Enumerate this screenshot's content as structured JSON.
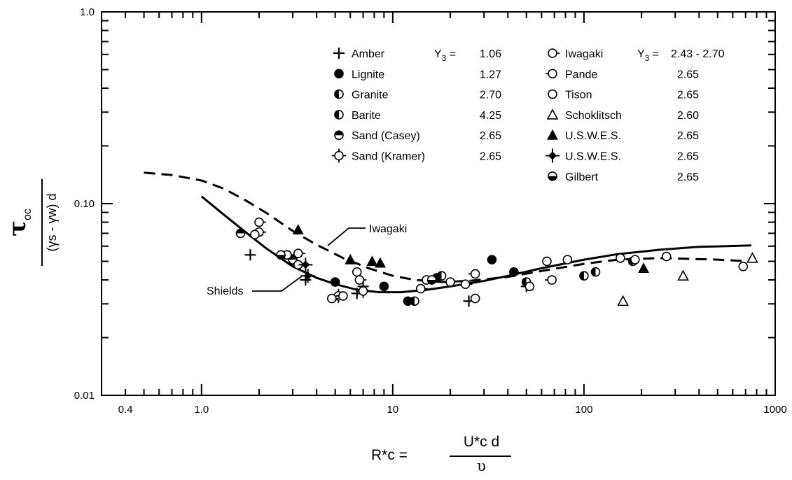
{
  "chart_data": {
    "type": "scatter",
    "x_scale": "log",
    "y_scale": "log",
    "xlim": [
      0.3,
      1000
    ],
    "ylim": [
      0.01,
      1.0
    ],
    "x_ticks": [
      "0.4",
      "1.0",
      "10",
      "100",
      "1000"
    ],
    "y_ticks": [
      "0.01",
      "0.10",
      "1.0"
    ],
    "ylabel": {
      "numerator": "τ",
      "numerator_sub": "oc",
      "denominator": "(γs - γw) d"
    },
    "xlabel": {
      "lhs": "R*c =",
      "numerator": "U*c d",
      "denominator": "υ"
    },
    "grid": false,
    "legend_position": "top",
    "gamma_header_left": "Y3 = ",
    "gamma_header_right": "Y3 = ",
    "legend_left": [
      {
        "name": "Amber",
        "marker": "plus",
        "gamma": "1.06"
      },
      {
        "name": "Lignite",
        "marker": "filled-circle",
        "gamma": "1.27"
      },
      {
        "name": "Granite",
        "marker": "half-left-circle",
        "gamma": "2.70"
      },
      {
        "name": "Barite",
        "marker": "half-left-circle",
        "gamma": "4.25"
      },
      {
        "name": "Sand (Casey)",
        "marker": "half-top-circle",
        "gamma": "2.65"
      },
      {
        "name": "Sand (Kramer)",
        "marker": "circle-cross",
        "gamma": "2.65"
      }
    ],
    "legend_right": [
      {
        "name": "Iwagaki",
        "marker": "circle-tick",
        "gamma": "2.43 - 2.70"
      },
      {
        "name": "Pande",
        "marker": "circle-tick-left",
        "gamma": "2.65"
      },
      {
        "name": "Tison",
        "marker": "open-circle",
        "gamma": "2.65"
      },
      {
        "name": "Schoklitsch",
        "marker": "open-triangle",
        "gamma": "2.60"
      },
      {
        "name": "U.S.W.E.S.",
        "marker": "filled-triangle",
        "gamma": "2.65"
      },
      {
        "name": "U.S.W.E.S.",
        "marker": "filled-diamond-cross",
        "gamma": "2.65"
      },
      {
        "name": "Gilbert",
        "marker": "half-bottom-circle",
        "gamma": "2.65"
      }
    ],
    "curve_labels": {
      "iwagaki": "Iwagaki",
      "shields": "Shields"
    },
    "curves": [
      {
        "name": "Shields",
        "style": "solid",
        "x": [
          1.0,
          1.3,
          1.7,
          2.2,
          3.0,
          4.0,
          5.0,
          6.5,
          8.5,
          11,
          15,
          20,
          30,
          40,
          60,
          100,
          150,
          250,
          400,
          750
        ],
        "y": [
          0.109,
          0.088,
          0.071,
          0.058,
          0.047,
          0.041,
          0.038,
          0.0355,
          0.0345,
          0.0345,
          0.0355,
          0.037,
          0.0395,
          0.042,
          0.046,
          0.051,
          0.0545,
          0.0575,
          0.0595,
          0.0605
        ]
      },
      {
        "name": "Iwagaki",
        "style": "dashed",
        "x": [
          0.5,
          0.7,
          1.0,
          1.3,
          1.7,
          2.2,
          3.0,
          4.0,
          5.5,
          7.5,
          10,
          13,
          18,
          25,
          40,
          60,
          100,
          150,
          250,
          500,
          750
        ],
        "y": [
          0.145,
          0.141,
          0.132,
          0.12,
          0.104,
          0.089,
          0.072,
          0.061,
          0.052,
          0.046,
          0.042,
          0.04,
          0.039,
          0.0395,
          0.0415,
          0.0445,
          0.0485,
          0.051,
          0.052,
          0.051,
          0.05
        ]
      }
    ],
    "series": [
      {
        "name": "Amber",
        "marker": "plus",
        "points": [
          [
            1.8,
            0.054
          ],
          [
            3.5,
            0.04
          ],
          [
            6.5,
            0.034
          ],
          [
            7.0,
            0.037
          ],
          [
            25,
            0.031
          ],
          [
            50,
            0.037
          ]
        ]
      },
      {
        "name": "Lignite",
        "marker": "filled-circle",
        "points": [
          [
            5.0,
            0.039
          ],
          [
            9.0,
            0.037
          ],
          [
            12,
            0.031
          ],
          [
            17,
            0.041
          ],
          [
            33,
            0.051
          ],
          [
            43,
            0.044
          ]
        ]
      },
      {
        "name": "Granite",
        "marker": "half-left-circle",
        "points": [
          [
            13,
            0.031
          ],
          [
            50,
            0.039
          ],
          [
            180,
            0.05
          ]
        ]
      },
      {
        "name": "Barite",
        "marker": "half-left-circle",
        "points": [
          [
            18,
            0.042
          ],
          [
            100,
            0.042
          ],
          [
            115,
            0.044
          ]
        ]
      },
      {
        "name": "Sand (Casey)",
        "marker": "half-top-circle",
        "points": [
          [
            1.6,
            0.07
          ],
          [
            2.8,
            0.054
          ],
          [
            3.0,
            0.051
          ]
        ]
      },
      {
        "name": "Sand (Kramer)",
        "marker": "circle-cross",
        "points": [
          [
            5.2,
            0.033
          ],
          [
            7.0,
            0.035
          ]
        ]
      },
      {
        "name": "Iwagaki",
        "marker": "circle-tick",
        "points": [
          [
            2.0,
            0.08
          ],
          [
            2.0,
            0.071
          ],
          [
            2.8,
            0.054
          ],
          [
            3.2,
            0.055
          ],
          [
            4.8,
            0.032
          ],
          [
            6.7,
            0.04
          ],
          [
            14,
            0.036
          ],
          [
            24,
            0.038
          ]
        ]
      },
      {
        "name": "Pande",
        "marker": "circle-tick-left",
        "points": [
          [
            1.9,
            0.069
          ],
          [
            3.2,
            0.048
          ],
          [
            5.5,
            0.033
          ],
          [
            27,
            0.043
          ],
          [
            68,
            0.04
          ],
          [
            185,
            0.051
          ]
        ]
      },
      {
        "name": "Tison",
        "marker": "open-circle",
        "points": [
          [
            6.5,
            0.044
          ],
          [
            15,
            0.04
          ],
          [
            20,
            0.039
          ],
          [
            27,
            0.032
          ],
          [
            52,
            0.037
          ],
          [
            64,
            0.05
          ],
          [
            82,
            0.051
          ],
          [
            155,
            0.052
          ],
          [
            270,
            0.053
          ],
          [
            680,
            0.047
          ]
        ]
      },
      {
        "name": "Schoklitsch",
        "marker": "open-triangle",
        "points": [
          [
            160,
            0.031
          ],
          [
            330,
            0.042
          ],
          [
            760,
            0.052
          ]
        ]
      },
      {
        "name": "U.S.W.E.S.",
        "marker": "filled-triangle",
        "points": [
          [
            3.2,
            0.073
          ],
          [
            6.0,
            0.051
          ],
          [
            7.8,
            0.05
          ],
          [
            8.6,
            0.049
          ],
          [
            205,
            0.046
          ]
        ]
      },
      {
        "name": "U.S.W.E.S.",
        "marker": "filled-diamond-cross",
        "points": [
          [
            3.5,
            0.048
          ],
          [
            3.6,
            0.042
          ]
        ]
      },
      {
        "name": "Gilbert",
        "marker": "half-bottom-circle",
        "points": [
          [
            2.6,
            0.054
          ],
          [
            16,
            0.04
          ]
        ]
      }
    ]
  }
}
